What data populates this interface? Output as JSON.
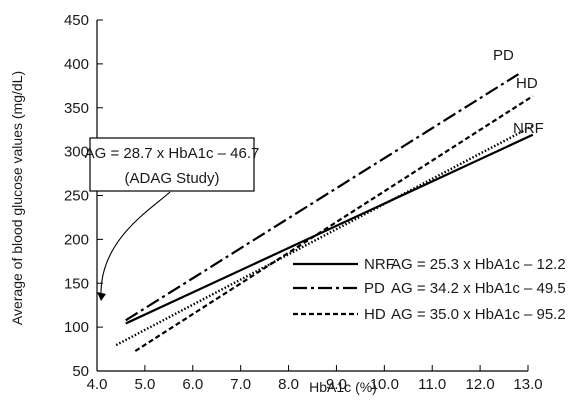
{
  "chart_data": {
    "type": "line",
    "xlabel": "HbA1c (%)",
    "ylabel": "Average of blood glucose values (mg/dL)",
    "xlim": [
      4.0,
      13.0
    ],
    "ylim": [
      50,
      450
    ],
    "x_ticks": [
      "4.0",
      "5.0",
      "6.0",
      "7.0",
      "8.0",
      "9.0",
      "10.0",
      "11.0",
      "12.0",
      "13.0"
    ],
    "y_ticks": [
      "50",
      "100",
      "150",
      "200",
      "250",
      "300",
      "350",
      "400",
      "450"
    ],
    "grid": false,
    "legend_position": "lower-right",
    "series": [
      {
        "name": "NRF",
        "style": "solid",
        "color": "#000000",
        "equation": "AG = 25.3 x HbA1c – 12.2",
        "x": [
          4.6,
          13.1
        ],
        "y": [
          104.2,
          319.2
        ]
      },
      {
        "name": "PD",
        "style": "dashdot",
        "color": "#000000",
        "equation": "AG = 34.2 x HbA1c – 49.5",
        "x": [
          4.6,
          12.8
        ],
        "y": [
          107.8,
          388.3
        ]
      },
      {
        "name": "HD",
        "style": "dashed",
        "color": "#000000",
        "equation": "AG = 35.0 x HbA1c – 95.2",
        "x": [
          4.8,
          13.1
        ],
        "y": [
          72.8,
          363.3
        ]
      },
      {
        "name": "",
        "style": "dotted",
        "color": "#000000",
        "equation": "",
        "x": [
          4.4,
          13.1
        ],
        "y": [
          79.6,
          329.3
        ]
      }
    ],
    "annotation": {
      "line1": "AG = 28.7 x HbA1c – 46.7",
      "line2": "(ADAG Study)"
    }
  }
}
